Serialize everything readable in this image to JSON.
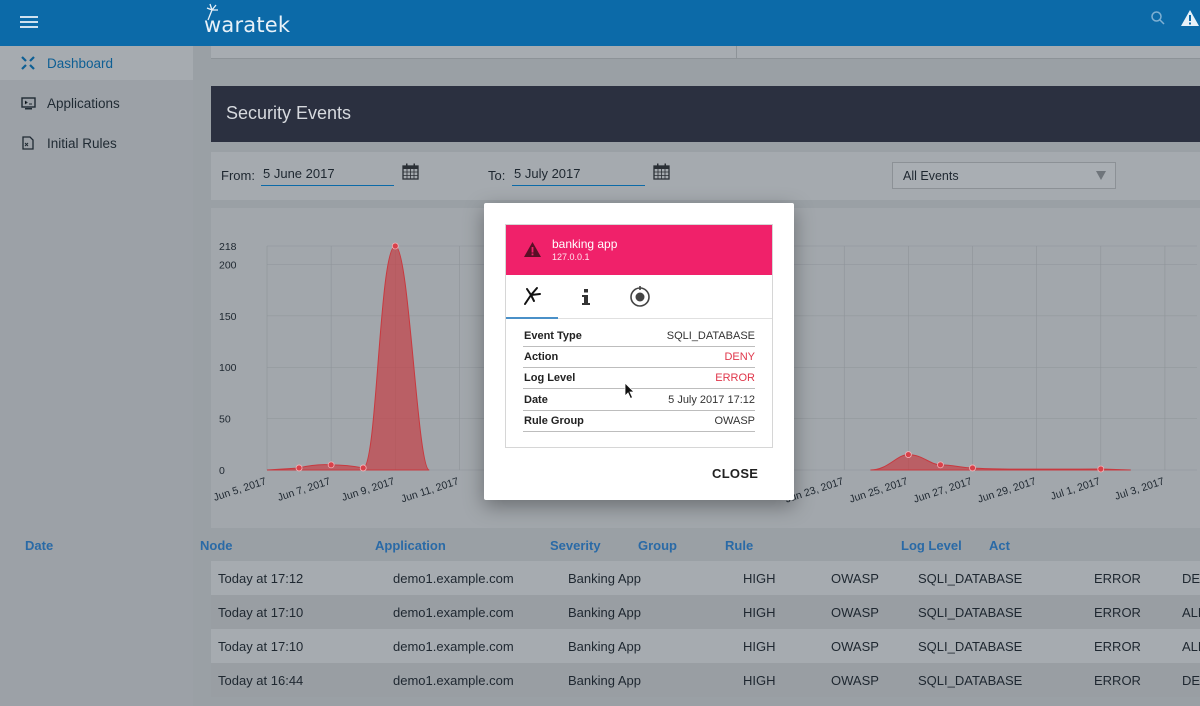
{
  "header": {
    "logo_text": "waratek"
  },
  "sidebar": {
    "items": [
      {
        "label": "Dashboard",
        "active": true
      },
      {
        "label": "Applications",
        "active": false
      },
      {
        "label": "Initial Rules",
        "active": false
      }
    ]
  },
  "section": {
    "title": "Security Events"
  },
  "filters": {
    "from_label": "From:",
    "from_value": "5 June 2017",
    "to_label": "To:",
    "to_value": "5 July 2017",
    "event_filter": "All Events"
  },
  "chart_data": {
    "type": "area",
    "y_ticks": [
      "0",
      "50",
      "100",
      "150",
      "200",
      "218"
    ],
    "ylim": [
      0,
      218
    ],
    "x_ticks": [
      "Jun 5, 2017",
      "Jun 7, 2017",
      "Jun 9, 2017",
      "Jun 11, 2017",
      "Jun 23, 2017",
      "Jun 25, 2017",
      "Jun 27, 2017",
      "Jun 29, 2017",
      "Jul 1, 2017",
      "Jul 3, 2017"
    ],
    "points": [
      {
        "x": "Jun 6, 2017",
        "y": 2
      },
      {
        "x": "Jun 7, 2017",
        "y": 5
      },
      {
        "x": "Jun 8, 2017",
        "y": 2
      },
      {
        "x": "Jun 9, 2017",
        "y": 218
      },
      {
        "x": "Jun 25, 2017",
        "y": 15
      },
      {
        "x": "Jun 26, 2017",
        "y": 5
      },
      {
        "x": "Jun 27, 2017",
        "y": 2
      },
      {
        "x": "Jul 1, 2017",
        "y": 1
      }
    ],
    "color": "#c8393f"
  },
  "table": {
    "headers": [
      "Date",
      "Node",
      "Application",
      "Severity",
      "Group",
      "Rule",
      "Log Level",
      "Act"
    ],
    "rows": [
      [
        "Today at 17:12",
        "demo1.example.com",
        "Banking App",
        "HIGH",
        "OWASP",
        "SQLI_DATABASE",
        "ERROR",
        "DE"
      ],
      [
        "Today at 17:10",
        "demo1.example.com",
        "Banking App",
        "HIGH",
        "OWASP",
        "SQLI_DATABASE",
        "ERROR",
        "ALL"
      ],
      [
        "Today at 17:10",
        "demo1.example.com",
        "Banking App",
        "HIGH",
        "OWASP",
        "SQLI_DATABASE",
        "ERROR",
        "ALL"
      ],
      [
        "Today at 16:44",
        "demo1.example.com",
        "Banking App",
        "HIGH",
        "OWASP",
        "SQLI_DATABASE",
        "ERROR",
        "DE"
      ]
    ]
  },
  "modal": {
    "app_name": "banking app",
    "ip": "127.0.0.1",
    "details": [
      {
        "key": "Event Type",
        "value": "SQLI_DATABASE",
        "highlight": false
      },
      {
        "key": "Action",
        "value": "DENY",
        "highlight": true
      },
      {
        "key": "Log Level",
        "value": "ERROR",
        "highlight": true
      },
      {
        "key": "Date",
        "value": "5 July 2017 17:12",
        "highlight": false
      },
      {
        "key": "Rule Group",
        "value": "OWASP",
        "highlight": false
      }
    ],
    "close_label": "CLOSE"
  },
  "colors": {
    "brand": "#0c6aa8",
    "alert": "#f0216a",
    "header_dark": "#2b3040"
  }
}
